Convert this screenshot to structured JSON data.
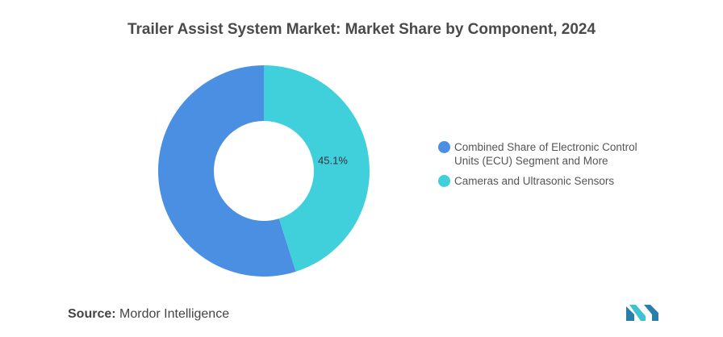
{
  "chart_data": {
    "type": "pie",
    "title": "Trailer Assist System Market: Market Share by Component, 2024",
    "donut": true,
    "categories": [
      "Combined Share of Electronic Control Units (ECU) Segment and More",
      "Cameras and Ultrasonic Sensors"
    ],
    "values": [
      54.9,
      45.1
    ],
    "colors": [
      "#4a8fe2",
      "#40d0dc"
    ],
    "data_labels": [
      "",
      "45.1%"
    ],
    "legend_position": "right"
  },
  "legend": {
    "items": [
      {
        "label": "Combined Share of Electronic Control Units (ECU) Segment and More",
        "color": "#4a8fe2"
      },
      {
        "label": "Cameras and Ultrasonic Sensors",
        "color": "#40d0dc"
      }
    ]
  },
  "source": {
    "label": "Source:",
    "text": "Mordor Intelligence"
  },
  "logo": {
    "icon": "mordor-intelligence-logo-icon",
    "colors": [
      "#2a7fa8",
      "#3fc4cf"
    ]
  }
}
